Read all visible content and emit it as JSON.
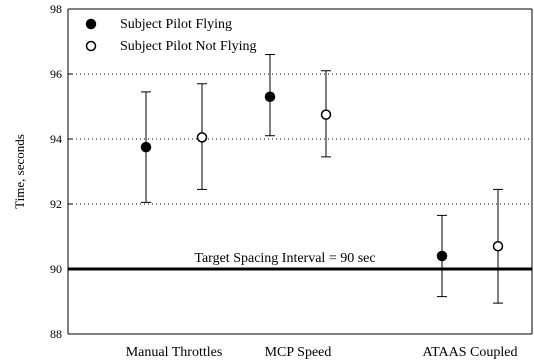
{
  "chart_data": {
    "type": "scatter",
    "ylabel": "Time, seconds",
    "ylim": [
      88,
      98
    ],
    "yticks": [
      88,
      90,
      92,
      94,
      96,
      98
    ],
    "categories": [
      "Manual Throttles",
      "MCP Speed",
      "ATAAS Coupled"
    ],
    "grid": "horizontal dotted",
    "legend_position": "top-left",
    "series": [
      {
        "name": "Subject Pilot Flying",
        "marker": "filled-circle",
        "values": [
          93.75,
          95.3,
          90.4
        ],
        "err_low": [
          92.05,
          94.1,
          89.15
        ],
        "err_high": [
          95.45,
          96.6,
          91.65
        ]
      },
      {
        "name": "Subject Pilot Not Flying",
        "marker": "open-circle",
        "values": [
          94.05,
          94.75,
          90.7
        ],
        "err_low": [
          92.45,
          93.45,
          88.95
        ],
        "err_high": [
          95.7,
          96.1,
          92.45
        ]
      }
    ],
    "reference_line": {
      "value": 90,
      "label": "Target Spacing Interval = 90 sec"
    }
  },
  "colors": {
    "marker": "#000000",
    "grid": "#000000",
    "background": "#ffffff"
  }
}
